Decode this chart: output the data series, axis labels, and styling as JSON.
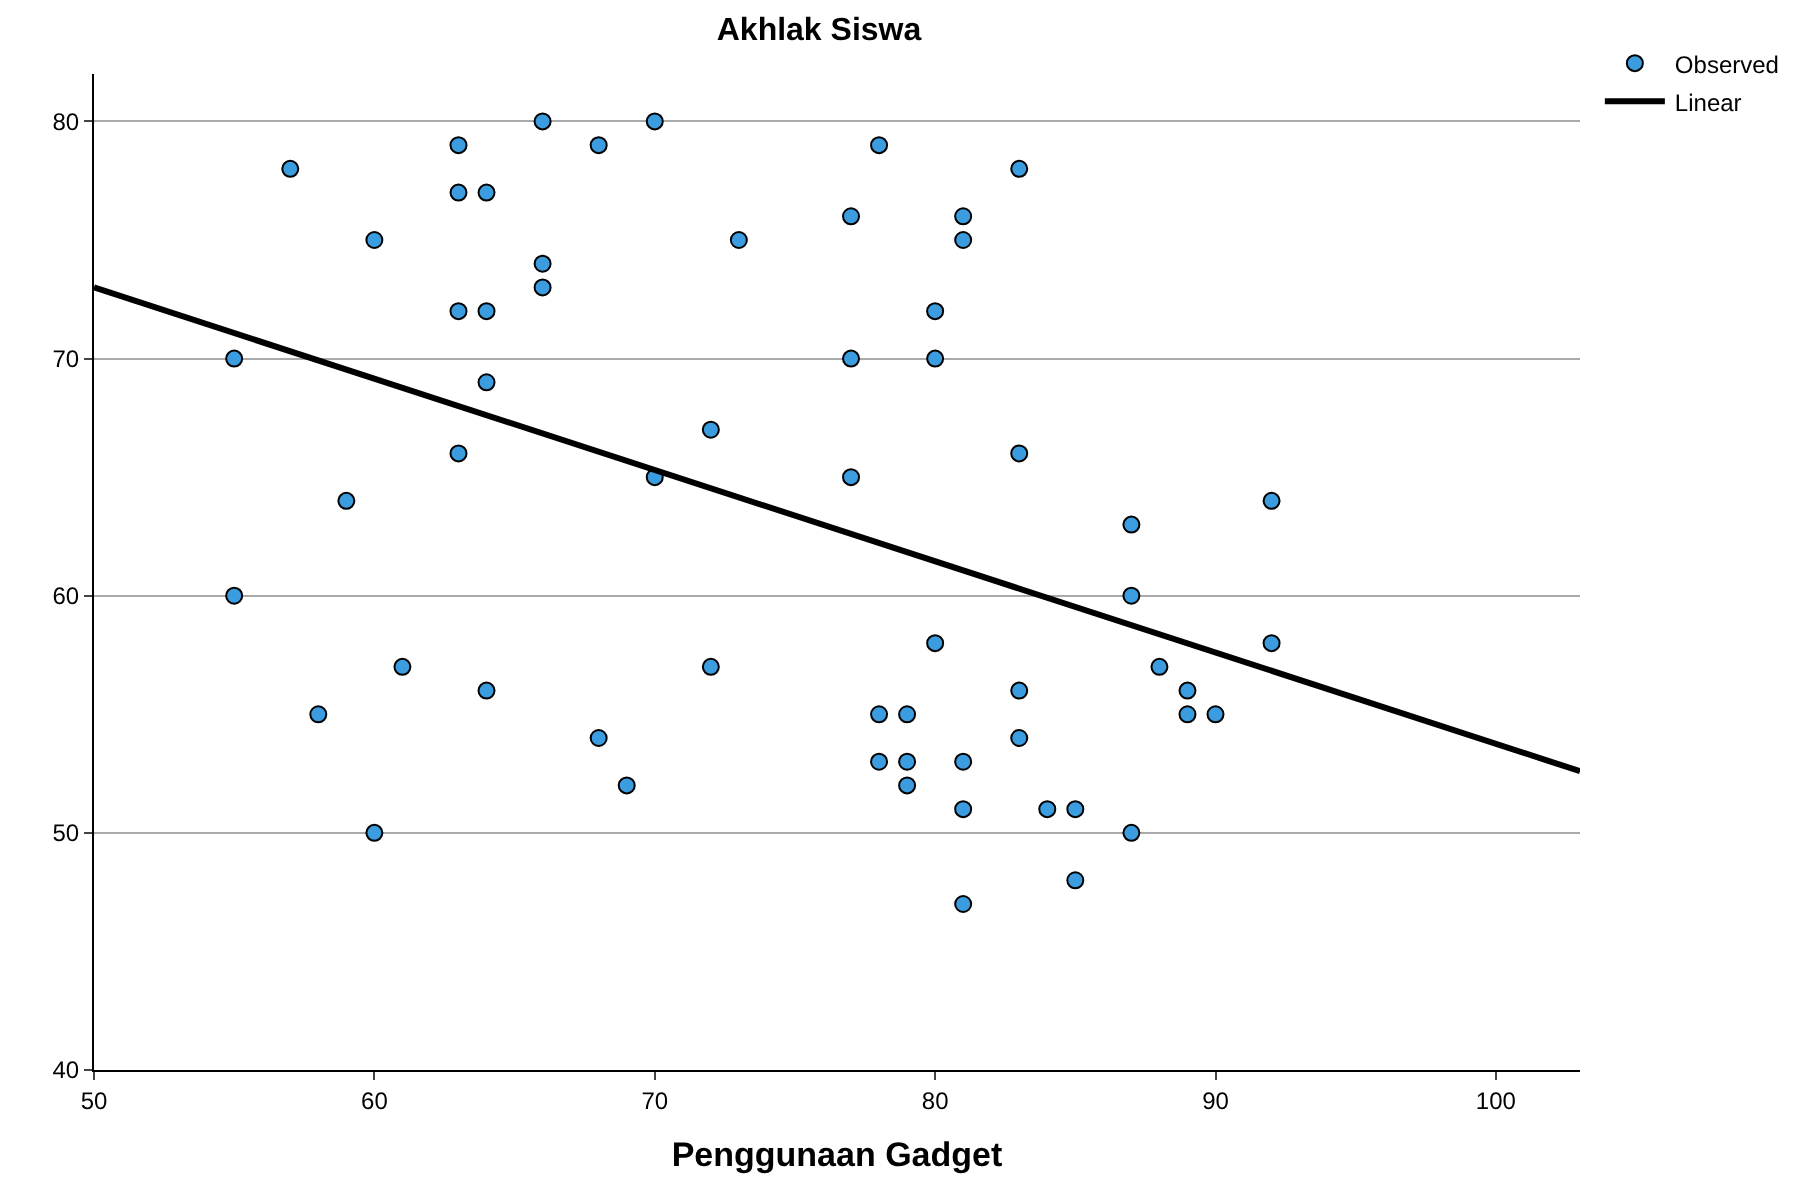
{
  "chart_data": {
    "type": "scatter",
    "title": "Akhlak Siswa",
    "xlabel": "Penggunaan Gadget",
    "xlim": [
      50,
      103
    ],
    "ylim": [
      40,
      82
    ],
    "xticks": [
      50,
      60,
      70,
      80,
      90,
      100
    ],
    "yticks": [
      40,
      50,
      60,
      70,
      80
    ],
    "grid": "y",
    "legend": "top right",
    "series": [
      {
        "name": "Observed",
        "marker": "circle",
        "color": "#3b9de0",
        "x": [
          55,
          55,
          57,
          58,
          59,
          60,
          60,
          61,
          63,
          63,
          63,
          63,
          64,
          64,
          64,
          64,
          66,
          66,
          66,
          68,
          68,
          69,
          70,
          70,
          72,
          72,
          73,
          77,
          77,
          77,
          78,
          78,
          78,
          79,
          79,
          79,
          80,
          80,
          80,
          81,
          81,
          81,
          81,
          81,
          83,
          83,
          83,
          83,
          84,
          85,
          85,
          87,
          87,
          87,
          88,
          89,
          89,
          90,
          92,
          92
        ],
        "values": [
          70,
          60,
          78,
          55,
          64,
          75,
          50,
          57,
          79,
          77,
          72,
          66,
          77,
          72,
          69,
          56,
          80,
          74,
          73,
          79,
          54,
          52,
          80,
          65,
          67,
          57,
          75,
          76,
          70,
          65,
          79,
          55,
          53,
          55,
          53,
          52,
          72,
          70,
          58,
          76,
          75,
          53,
          51,
          47,
          78,
          66,
          56,
          54,
          51,
          51,
          48,
          63,
          60,
          50,
          57,
          56,
          55,
          55,
          64,
          58
        ]
      },
      {
        "name": "Linear",
        "type": "line",
        "line_style": "solid",
        "color": "#000000",
        "x": [
          50,
          103
        ],
        "values": [
          73,
          52.6
        ]
      }
    ]
  }
}
